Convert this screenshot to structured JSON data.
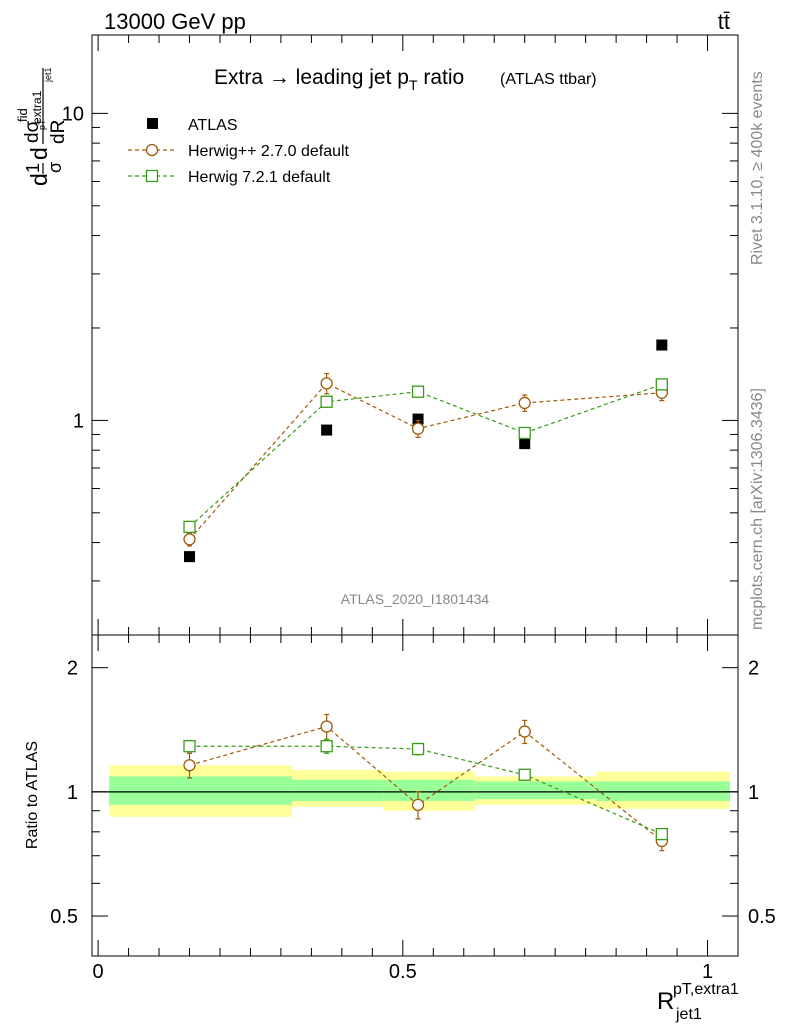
{
  "header": {
    "energy_label": "13000 GeV pp",
    "process_label": "tt̄"
  },
  "side_labels": {
    "rivet": "Rivet 3.1.10, ≥ 400k events",
    "mcplots": "mcplots.cern.ch [arXiv:1306.3436]"
  },
  "colors": {
    "atlas": "#000000",
    "herwigpp": "#a05a0a",
    "herwig7": "#3a9a1a",
    "band_inner": "#99ff99",
    "band_outer": "#ffff99"
  },
  "chart_data": [
    {
      "type": "scatter",
      "title_main": "Extra → leading jet p",
      "title_sub": "T",
      "title_tail": " ratio",
      "title_small": "(ATLAS ttbar)",
      "watermark": "ATLAS_2020_I1801434",
      "ylabel": "d(1/σ) dσ^fid / dR (extra1 / jet1)",
      "yscale": "log",
      "ylim": [
        0.2,
        18
      ],
      "xlim": [
        -0.01,
        1.05
      ],
      "y_tick_labels": [
        "1",
        "10"
      ],
      "legend_placement": "top-left",
      "series": [
        {
          "name": "ATLAS",
          "style": "square-filled",
          "color": "#000000",
          "x": [
            0.15,
            0.375,
            0.525,
            0.7,
            0.925
          ],
          "y": [
            0.36,
            0.93,
            1.01,
            0.84,
            1.76
          ]
        },
        {
          "name": "Herwig++ 2.7.0 default",
          "style": "circle-open-dashed",
          "color": "#a05a0a",
          "x": [
            0.15,
            0.375,
            0.525,
            0.7,
            0.925
          ],
          "y": [
            0.41,
            1.32,
            0.94,
            1.14,
            1.23
          ],
          "yerr": [
            0.02,
            0.1,
            0.06,
            0.07,
            0.07
          ]
        },
        {
          "name": "Herwig 7.2.1 default",
          "style": "square-open-dashed",
          "color": "#3a9a1a",
          "x": [
            0.15,
            0.375,
            0.525,
            0.7,
            0.925
          ],
          "y": [
            0.45,
            1.15,
            1.24,
            0.91,
            1.31
          ],
          "yerr": [
            0.015,
            0.04,
            0.04,
            0.03,
            0.05
          ]
        }
      ]
    },
    {
      "type": "scatter",
      "ylabel": "Ratio to ATLAS",
      "xlabel_base": "R",
      "xlabel_sup": "pT,extra1",
      "xlabel_sub": "jet1",
      "yscale": "log",
      "ylim": [
        0.4,
        2.4
      ],
      "xlim": [
        -0.01,
        1.05
      ],
      "x_tick_labels": [
        "0",
        "0.5",
        "1"
      ],
      "y_tick_labels": [
        "0.5",
        "1",
        "2"
      ],
      "bands": [
        {
          "x": [
            0.0,
            0.3
          ],
          "inner": [
            0.93,
            1.09
          ],
          "outer": [
            0.87,
            1.16
          ]
        },
        {
          "x": [
            0.3,
            0.45
          ],
          "inner": [
            0.95,
            1.07
          ],
          "outer": [
            0.92,
            1.13
          ]
        },
        {
          "x": [
            0.45,
            0.6
          ],
          "inner": [
            0.95,
            1.07
          ],
          "outer": [
            0.9,
            1.12
          ]
        },
        {
          "x": [
            0.6,
            0.8
          ],
          "inner": [
            0.96,
            1.06
          ],
          "outer": [
            0.93,
            1.09
          ]
        },
        {
          "x": [
            0.8,
            1.045
          ],
          "inner": [
            0.95,
            1.06
          ],
          "outer": [
            0.91,
            1.12
          ]
        }
      ],
      "series": [
        {
          "name": "Herwig++ 2.7.0 default",
          "color": "#a05a0a",
          "x": [
            0.15,
            0.375,
            0.525,
            0.7,
            0.925
          ],
          "y": [
            1.16,
            1.44,
            0.93,
            1.4,
            0.76
          ],
          "yerr": [
            0.08,
            0.1,
            0.07,
            0.09,
            0.04
          ]
        },
        {
          "name": "Herwig 7.2.1 default",
          "color": "#3a9a1a",
          "x": [
            0.15,
            0.375,
            0.525,
            0.7,
            0.925
          ],
          "y": [
            1.29,
            1.29,
            1.27,
            1.1,
            0.79
          ],
          "yerr": [
            0.04,
            0.05,
            0.04,
            0.03,
            0.02
          ]
        }
      ]
    }
  ]
}
